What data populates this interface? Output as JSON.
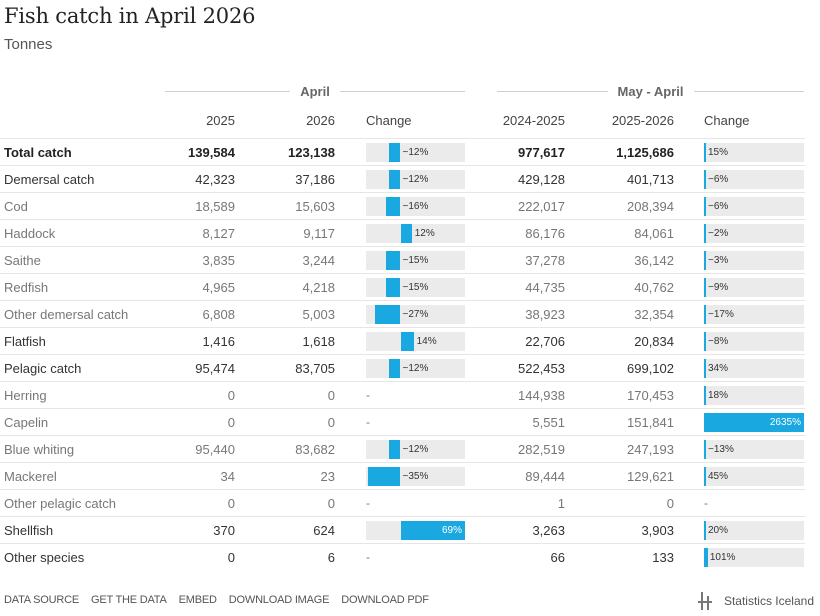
{
  "title": "Fish catch in April 2026",
  "subtitle": "Tonnes",
  "groups": {
    "left": "April",
    "right": "May - April"
  },
  "headers": {
    "left_y1": "2025",
    "left_y2": "2026",
    "left_change": "Change",
    "right_y1": "2024-2025",
    "right_y2": "2025-2026",
    "right_change": "Change"
  },
  "chart_data": {
    "type": "table",
    "title": "Fish catch in April 2026",
    "subtitle": "Tonnes",
    "columns": [
      "April 2025",
      "April 2026",
      "April Change",
      "May-April 2024-2025",
      "May-April 2025-2026",
      "May-April Change"
    ],
    "change_scale_max_pct": {
      "left": 69,
      "right": 2635
    },
    "rows": [
      {
        "name": "Total catch",
        "level": "bold",
        "a1": "139,584",
        "a2": "123,138",
        "ac": -12,
        "acl": "−12%",
        "b1": "977,617",
        "b2": "1,125,686",
        "bc": 15,
        "bcl": "15%"
      },
      {
        "name": "Demersal catch",
        "level": "mid",
        "a1": "42,323",
        "a2": "37,186",
        "ac": -12,
        "acl": "−12%",
        "b1": "429,128",
        "b2": "401,713",
        "bc": -6,
        "bcl": "−6%"
      },
      {
        "name": "Cod",
        "level": "sub",
        "a1": "18,589",
        "a2": "15,603",
        "ac": -16,
        "acl": "−16%",
        "b1": "222,017",
        "b2": "208,394",
        "bc": -6,
        "bcl": "−6%"
      },
      {
        "name": "Haddock",
        "level": "sub",
        "a1": "8,127",
        "a2": "9,117",
        "ac": 12,
        "acl": "12%",
        "b1": "86,176",
        "b2": "84,061",
        "bc": -2,
        "bcl": "−2%"
      },
      {
        "name": "Saithe",
        "level": "sub",
        "a1": "3,835",
        "a2": "3,244",
        "ac": -15,
        "acl": "−15%",
        "b1": "37,278",
        "b2": "36,142",
        "bc": -3,
        "bcl": "−3%"
      },
      {
        "name": "Redfish",
        "level": "sub",
        "a1": "4,965",
        "a2": "4,218",
        "ac": -15,
        "acl": "−15%",
        "b1": "44,735",
        "b2": "40,762",
        "bc": -9,
        "bcl": "−9%"
      },
      {
        "name": "Other demersal catch",
        "level": "sub",
        "a1": "6,808",
        "a2": "5,003",
        "ac": -27,
        "acl": "−27%",
        "b1": "38,923",
        "b2": "32,354",
        "bc": -17,
        "bcl": "−17%"
      },
      {
        "name": "Flatfish",
        "level": "mid",
        "a1": "1,416",
        "a2": "1,618",
        "ac": 14,
        "acl": "14%",
        "b1": "22,706",
        "b2": "20,834",
        "bc": -8,
        "bcl": "−8%"
      },
      {
        "name": "Pelagic catch",
        "level": "mid",
        "a1": "95,474",
        "a2": "83,705",
        "ac": -12,
        "acl": "−12%",
        "b1": "522,453",
        "b2": "699,102",
        "bc": 34,
        "bcl": "34%"
      },
      {
        "name": "Herring",
        "level": "sub",
        "a1": "0",
        "a2": "0",
        "ac": null,
        "acl": "-",
        "b1": "144,938",
        "b2": "170,453",
        "bc": 18,
        "bcl": "18%"
      },
      {
        "name": "Capelin",
        "level": "sub",
        "a1": "0",
        "a2": "0",
        "ac": null,
        "acl": "-",
        "b1": "5,551",
        "b2": "151,841",
        "bc": 2635,
        "bcl": "2635%"
      },
      {
        "name": "Blue whiting",
        "level": "sub",
        "a1": "95,440",
        "a2": "83,682",
        "ac": -12,
        "acl": "−12%",
        "b1": "282,519",
        "b2": "247,193",
        "bc": -13,
        "bcl": "−13%"
      },
      {
        "name": "Mackerel",
        "level": "sub",
        "a1": "34",
        "a2": "23",
        "ac": -35,
        "acl": "−35%",
        "b1": "89,444",
        "b2": "129,621",
        "bc": 45,
        "bcl": "45%"
      },
      {
        "name": "Other pelagic catch",
        "level": "sub",
        "a1": "0",
        "a2": "0",
        "ac": null,
        "acl": "-",
        "b1": "1",
        "b2": "0",
        "bc": null,
        "bcl": "-"
      },
      {
        "name": "Shellfish",
        "level": "mid",
        "a1": "370",
        "a2": "624",
        "ac": 69,
        "acl": "69%",
        "b1": "3,263",
        "b2": "3,903",
        "bc": 20,
        "bcl": "20%"
      },
      {
        "name": "Other species",
        "level": "mid",
        "a1": "0",
        "a2": "6",
        "ac": null,
        "acl": "-",
        "b1": "66",
        "b2": "133",
        "bc": 101,
        "bcl": "101%"
      }
    ]
  },
  "colors": {
    "bar": "#1aa8e0",
    "track": "#ebebeb"
  },
  "footer": {
    "links": [
      "DATA SOURCE",
      "GET THE DATA",
      "EMBED",
      "DOWNLOAD IMAGE",
      "DOWNLOAD PDF"
    ],
    "brand": "Statistics Iceland",
    "brand_icon": "statistics-iceland-logo-icon"
  }
}
